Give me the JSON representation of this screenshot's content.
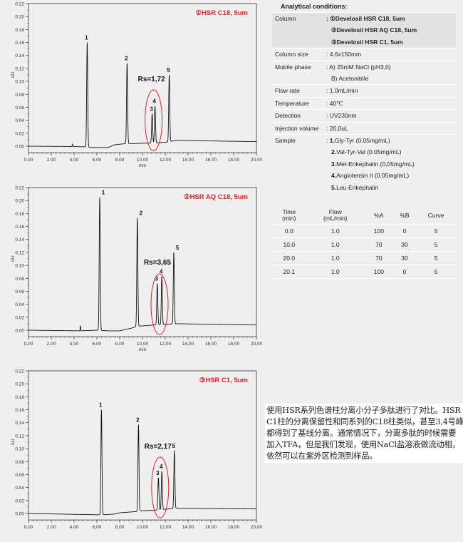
{
  "chart_data": [
    {
      "type": "line",
      "title": "①HSR C18, 5um",
      "ylabel": "AU",
      "xlabel": "min",
      "xlim": [
        0,
        20
      ],
      "ylim": [
        -0.01,
        0.22
      ],
      "x_ticks": [
        "0.00",
        "2.00",
        "4.00",
        "6.00",
        "8.00",
        "10.00",
        "12.00",
        "14.00",
        "16.00",
        "18.00",
        "20.00"
      ],
      "y_ticks": [
        "0.00",
        "0.02",
        "0.04",
        "0.06",
        "0.08",
        "0.10",
        "0.12",
        "0.14",
        "0.16",
        "0.18",
        "0.20",
        "0.22"
      ],
      "annotation": "Rs=1,72",
      "peaks": [
        {
          "label": "1",
          "time": 5.15,
          "height": 0.16
        },
        {
          "label": "2",
          "time": 8.65,
          "height": 0.128
        },
        {
          "label": "3",
          "time": 10.85,
          "height": 0.05
        },
        {
          "label": "4",
          "time": 11.1,
          "height": 0.062
        },
        {
          "label": "5",
          "time": 12.35,
          "height": 0.11
        },
        {
          "label": "",
          "time": 3.85,
          "height": 0.003
        }
      ],
      "baseline": [
        [
          0,
          0
        ],
        [
          3.8,
          -0.0005
        ],
        [
          5,
          -0.001
        ],
        [
          5.4,
          -0.002
        ],
        [
          7,
          -0.002
        ],
        [
          7.5,
          0.002
        ],
        [
          8.5,
          0.004
        ],
        [
          9,
          0.004
        ],
        [
          11,
          0.005
        ],
        [
          12,
          0.006
        ],
        [
          13,
          0.009
        ],
        [
          20,
          0.007
        ]
      ]
    },
    {
      "type": "line",
      "title": "②HSR AQ C18, 5um",
      "ylabel": "AU",
      "xlabel": "min",
      "xlim": [
        0,
        20
      ],
      "ylim": [
        -0.01,
        0.22
      ],
      "x_ticks": [
        "0,00",
        "2,00",
        "4,00",
        "6,00",
        "8,00",
        "10,00",
        "12,00",
        "14,00",
        "16,00",
        "18,00",
        "20,00"
      ],
      "y_ticks": [
        "0.00",
        "0.02",
        "0.04",
        "0.06",
        "0.08",
        "0.10",
        "0.12",
        "0.14",
        "0.16",
        "0.18",
        "0.20",
        "0.22"
      ],
      "annotation": "Rs=3,65",
      "peaks": [
        {
          "label": "1",
          "time": 6.25,
          "height": 0.205
        },
        {
          "label": "2",
          "time": 9.55,
          "height": 0.173
        },
        {
          "label": "3",
          "time": 11.3,
          "height": 0.072
        },
        {
          "label": "4",
          "time": 11.7,
          "height": 0.083
        },
        {
          "label": "5",
          "time": 12.75,
          "height": 0.12
        },
        {
          "label": "",
          "time": 4.55,
          "height": 0.007
        }
      ],
      "baseline": [
        [
          0,
          0
        ],
        [
          4.5,
          -0.001
        ],
        [
          6,
          0
        ],
        [
          7,
          -0.001
        ],
        [
          8,
          -0.001
        ],
        [
          9,
          0.003
        ],
        [
          9.5,
          0.006
        ],
        [
          11,
          0.008
        ],
        [
          13,
          0.01
        ],
        [
          20,
          0.008
        ]
      ]
    },
    {
      "type": "line",
      "title": "③HSR C1, 5um",
      "ylabel": "AU",
      "xlabel": "",
      "xlim": [
        0,
        20
      ],
      "ylim": [
        -0.01,
        0.22
      ],
      "x_ticks": [
        "0,00",
        "2,00",
        "4,00",
        "6,00",
        "8,00",
        "10,00",
        "12,00",
        "14,00",
        "16,00",
        "18,00",
        "20,00"
      ],
      "y_ticks": [
        "0.00",
        "0.02",
        "0.04",
        "0.06",
        "0.08",
        "0.10",
        "0.12",
        "0.14",
        "0.16",
        "0.18",
        "0.20",
        "0.22"
      ],
      "annotation": "Rs=2,17",
      "peaks": [
        {
          "label": "1",
          "time": 6.4,
          "height": 0.16
        },
        {
          "label": "2",
          "time": 9.65,
          "height": 0.137
        },
        {
          "label": "3",
          "time": 11.4,
          "height": 0.055
        },
        {
          "label": "4",
          "time": 11.7,
          "height": 0.065
        },
        {
          "label": "5",
          "time": 12.8,
          "height": 0.097
        }
      ],
      "baseline": [
        [
          0,
          0
        ],
        [
          6,
          -0.002
        ],
        [
          6.5,
          -0.002
        ],
        [
          7.5,
          -0.001
        ],
        [
          8,
          0.001
        ],
        [
          9.5,
          0.003
        ],
        [
          9.7,
          0.004
        ],
        [
          11,
          0.005
        ],
        [
          13,
          0.008
        ],
        [
          20,
          0.007
        ]
      ]
    }
  ],
  "conditions": {
    "header": "Analytical conditions:",
    "rows": [
      {
        "label": "Column",
        "values": [
          ": ①Develosil HSR C18, 5um",
          "②Develosil HSR AQ C18, 5um",
          "③Develosil HSR C1, 5um"
        ]
      },
      {
        "label": "Column size",
        "values": [
          ": 4.6x150mm"
        ]
      },
      {
        "label": "Mobile phase",
        "values": [
          ": A) 25mM NaCl (pH3,0)",
          "B) Acetonitrile"
        ]
      },
      {
        "label": "Flow rate",
        "values": [
          ": 1.0mL/min"
        ]
      },
      {
        "label": "Temperature",
        "values": [
          ": 40℃"
        ]
      },
      {
        "label": "Detection",
        "values": [
          ": UV230nm"
        ]
      },
      {
        "label": "Injection volume",
        "values": [
          ": 20,0uL"
        ]
      },
      {
        "label": "Sample",
        "values": [
          ": 1.Gly-Tyr (0.05mg/mL)",
          "2.Val-Tyr-Val (0.05mg/mL)",
          "3.Met-Enkephalin (0,05mg/mL)",
          "4.Angiotensin II (0.05mg/mL)",
          "5.Leu-Enkephalin"
        ]
      }
    ]
  },
  "gradient": {
    "headers": [
      [
        "Time",
        "(min)"
      ],
      [
        "Flow",
        "(mL/min)"
      ],
      [
        "%A",
        ""
      ],
      [
        "%B",
        ""
      ],
      [
        "Curve",
        ""
      ]
    ],
    "rows": [
      [
        "0.0",
        "1.0",
        "100",
        "0",
        "5"
      ],
      [
        "10.0",
        "1.0",
        "70",
        "30",
        "5"
      ],
      [
        "20.0",
        "1.0",
        "70",
        "30",
        "5"
      ],
      [
        "20.1",
        "1.0",
        "100",
        "0",
        "5"
      ]
    ]
  },
  "note": "使用HSR系列色谱柱分离小分子多肽进行了对比。HSR C1柱的分离保留性和同系列的C18柱类似，甚至3,4号峰都得到了基线分离。通常情况下，分离多肽的时候需要加入TFA，但是我们发现，使用NaCl盐溶液做流动相，依然可以在紫外区检测到样品。",
  "colors": {
    "accent": "#e0202a",
    "trace": "#111111",
    "background": "#efefef"
  }
}
